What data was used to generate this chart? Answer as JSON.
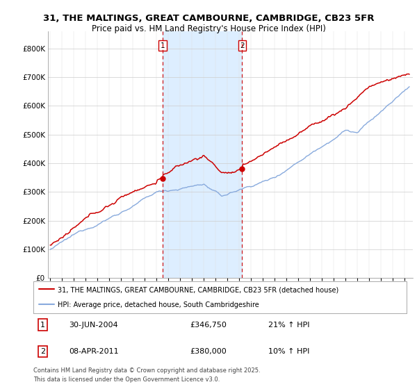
{
  "title": "31, THE MALTINGS, GREAT CAMBOURNE, CAMBRIDGE, CB23 5FR",
  "subtitle": "Price paid vs. HM Land Registry's House Price Index (HPI)",
  "footer": "Contains HM Land Registry data © Crown copyright and database right 2025.\nThis data is licensed under the Open Government Licence v3.0.",
  "legend_line1": "31, THE MALTINGS, GREAT CAMBOURNE, CAMBRIDGE, CB23 5FR (detached house)",
  "legend_line2": "HPI: Average price, detached house, South Cambridgeshire",
  "sale1_date": "30-JUN-2004",
  "sale1_price": "£346,750",
  "sale1_hpi": "21% ↑ HPI",
  "sale2_date": "08-APR-2011",
  "sale2_price": "£380,000",
  "sale2_hpi": "10% ↑ HPI",
  "price_line_color": "#cc0000",
  "hpi_line_color": "#88aadd",
  "span_color": "#ddeeff",
  "sale1_x": 2004.5,
  "sale2_x": 2011.25,
  "sale1_y": 346750,
  "sale2_y": 380000,
  "ylim": [
    0,
    860000
  ],
  "yticks": [
    0,
    100000,
    200000,
    300000,
    400000,
    500000,
    600000,
    700000,
    800000
  ],
  "xlim_start": 1994.8,
  "xlim_end": 2025.7
}
